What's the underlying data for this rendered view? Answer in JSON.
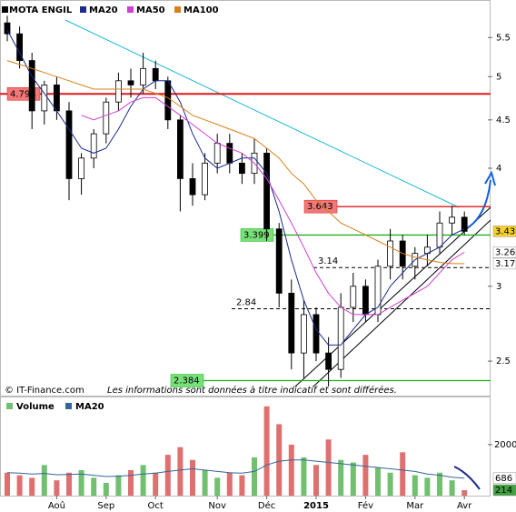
{
  "chart_data": [
    {
      "type": "candlestick",
      "title": "MOTA ENGIL",
      "color": "#000000",
      "log_scale": true,
      "categories": [
        null,
        null,
        null,
        null,
        "Aoû",
        null,
        null,
        null,
        "Sep",
        null,
        null,
        null,
        "Oct",
        null,
        null,
        null,
        null,
        "Nov",
        null,
        null,
        null,
        "Déc",
        null,
        null,
        null,
        "2015",
        null,
        null,
        null,
        "Fév",
        null,
        null,
        null,
        "Mar",
        null,
        null,
        null,
        "Avr"
      ],
      "open": [
        5.7,
        5.55,
        5.2,
        4.6,
        4.9,
        4.6,
        3.9,
        4.1,
        4.35,
        4.7,
        4.95,
        4.9,
        5.1,
        4.95,
        4.5,
        3.9,
        3.75,
        4.05,
        4.25,
        4.05,
        3.95,
        4.15,
        3.45,
        2.95,
        2.55,
        2.8,
        2.55,
        2.45,
        2.85,
        3.0,
        2.8,
        3.15,
        3.35,
        3.15,
        3.25,
        3.3,
        3.5,
        3.55
      ],
      "high": [
        5.8,
        5.65,
        5.3,
        4.95,
        5.0,
        4.7,
        4.15,
        4.4,
        4.75,
        5.05,
        5.1,
        5.3,
        5.2,
        5.0,
        4.55,
        4.05,
        4.15,
        4.35,
        4.35,
        4.15,
        4.3,
        4.2,
        3.5,
        3.05,
        2.9,
        2.85,
        2.65,
        2.95,
        3.1,
        3.05,
        3.2,
        3.45,
        3.4,
        3.3,
        3.4,
        3.6,
        3.65,
        3.6
      ],
      "low": [
        5.45,
        5.1,
        4.4,
        4.45,
        4.5,
        3.7,
        3.75,
        4.0,
        4.25,
        4.6,
        4.75,
        4.8,
        4.85,
        4.4,
        3.6,
        3.65,
        3.7,
        3.95,
        3.95,
        3.85,
        3.85,
        3.35,
        2.85,
        2.45,
        2.4,
        2.5,
        2.35,
        2.4,
        2.75,
        2.75,
        2.75,
        3.05,
        3.05,
        3.05,
        3.15,
        3.25,
        3.4,
        3.4
      ],
      "close": [
        5.55,
        5.2,
        4.6,
        4.9,
        4.6,
        3.9,
        4.1,
        4.35,
        4.7,
        4.95,
        4.9,
        5.1,
        4.95,
        4.5,
        3.9,
        3.75,
        4.05,
        4.25,
        4.05,
        3.95,
        4.15,
        3.45,
        2.95,
        2.55,
        2.8,
        2.55,
        2.45,
        2.85,
        3.0,
        2.8,
        3.15,
        3.35,
        3.15,
        3.25,
        3.3,
        3.5,
        3.55,
        3.43
      ],
      "series": [
        {
          "name": "MA20",
          "color": "#1c2a8c",
          "values": [
            5.6,
            5.3,
            5.0,
            4.8,
            4.6,
            4.4,
            4.2,
            4.15,
            4.2,
            4.4,
            4.65,
            4.85,
            4.95,
            4.95,
            4.7,
            4.35,
            4.1,
            4.0,
            4.05,
            4.1,
            4.1,
            3.95,
            3.6,
            3.2,
            2.9,
            2.7,
            2.6,
            2.6,
            2.7,
            2.8,
            2.85,
            3.0,
            3.1,
            3.2,
            3.25,
            3.3,
            3.4,
            3.45
          ]
        },
        {
          "name": "MA50",
          "color": "#d040d0",
          "values": [
            null,
            null,
            null,
            null,
            null,
            null,
            4.55,
            4.5,
            4.55,
            4.6,
            4.7,
            4.75,
            4.75,
            4.65,
            4.55,
            4.45,
            4.35,
            4.25,
            4.2,
            4.15,
            4.05,
            3.9,
            3.7,
            3.5,
            3.3,
            3.1,
            2.95,
            2.85,
            2.8,
            2.8,
            2.8,
            2.85,
            2.9,
            2.95,
            3.0,
            3.1,
            3.2,
            3.26
          ]
        },
        {
          "name": "MA100",
          "color": "#d8801c",
          "values": [
            5.2,
            5.15,
            5.1,
            5.05,
            5.0,
            4.95,
            4.9,
            4.85,
            4.85,
            4.85,
            4.85,
            4.85,
            4.8,
            4.75,
            4.65,
            4.55,
            4.5,
            4.45,
            4.4,
            4.35,
            4.3,
            4.2,
            4.1,
            3.95,
            3.85,
            3.7,
            3.6,
            3.5,
            3.45,
            3.4,
            3.35,
            3.3,
            3.25,
            3.22,
            3.2,
            3.18,
            3.17,
            3.17
          ]
        }
      ],
      "ylim": [
        2.35,
        6.0
      ],
      "yticks": [
        5.5,
        5,
        4.5,
        4,
        3,
        2.5
      ],
      "levels": [
        {
          "value": 4.794,
          "line": "#e01818",
          "fill": "#f07878"
        },
        {
          "value": 3.643,
          "line": "#e01818",
          "fill": "#f07878"
        },
        {
          "value": 3.399,
          "line": "#20b020",
          "fill": "#78e078"
        },
        {
          "value": 2.384,
          "line": "#20b020",
          "fill": "#78e078"
        },
        {
          "value": 3.14,
          "line": "#000000",
          "dashed": true
        },
        {
          "value": 2.84,
          "line": "#000000",
          "dashed": true
        }
      ],
      "last_labels": [
        {
          "value": 3.43,
          "color": "#000000",
          "fill": "#f8d030"
        },
        {
          "value": 3.26,
          "color": "#d040d0",
          "fill": "#ffffff"
        },
        {
          "value": 3.17,
          "color": "#d8801c",
          "fill": "#ffffff"
        }
      ],
      "credit": "© IT-Finance.com",
      "note": "Les informations sont données à titre indicatif et sont différées."
    },
    {
      "type": "bar",
      "title": "Volume",
      "up_color": "#70c070",
      "down_color": "#e07070",
      "values": [
        900,
        800,
        700,
        1200,
        600,
        900,
        1000,
        700,
        500,
        800,
        1000,
        1200,
        900,
        1600,
        1900,
        1400,
        1000,
        700,
        900,
        800,
        1500,
        3500,
        2800,
        2000,
        1500,
        1200,
        2200,
        1400,
        1300,
        1600,
        1100,
        900,
        1700,
        800,
        700,
        900,
        600,
        214
      ],
      "series": [
        {
          "name": "MA20",
          "color": "#336699",
          "values": [
            900,
            880,
            850,
            870,
            820,
            830,
            850,
            800,
            750,
            760,
            800,
            850,
            880,
            950,
            1000,
            1050,
            1000,
            950,
            900,
            880,
            950,
            1200,
            1350,
            1400,
            1400,
            1350,
            1300,
            1250,
            1200,
            1150,
            1100,
            1050,
            1000,
            950,
            850,
            800,
            720,
            686
          ]
        }
      ],
      "ylim": [
        0,
        3850
      ],
      "yticks": [
        2000
      ],
      "last_labels": [
        {
          "value": 686,
          "color": "#336699",
          "fill": "#ffffff"
        },
        {
          "value": 214,
          "color": "#ffffff",
          "fill": "#40a040"
        }
      ]
    }
  ]
}
